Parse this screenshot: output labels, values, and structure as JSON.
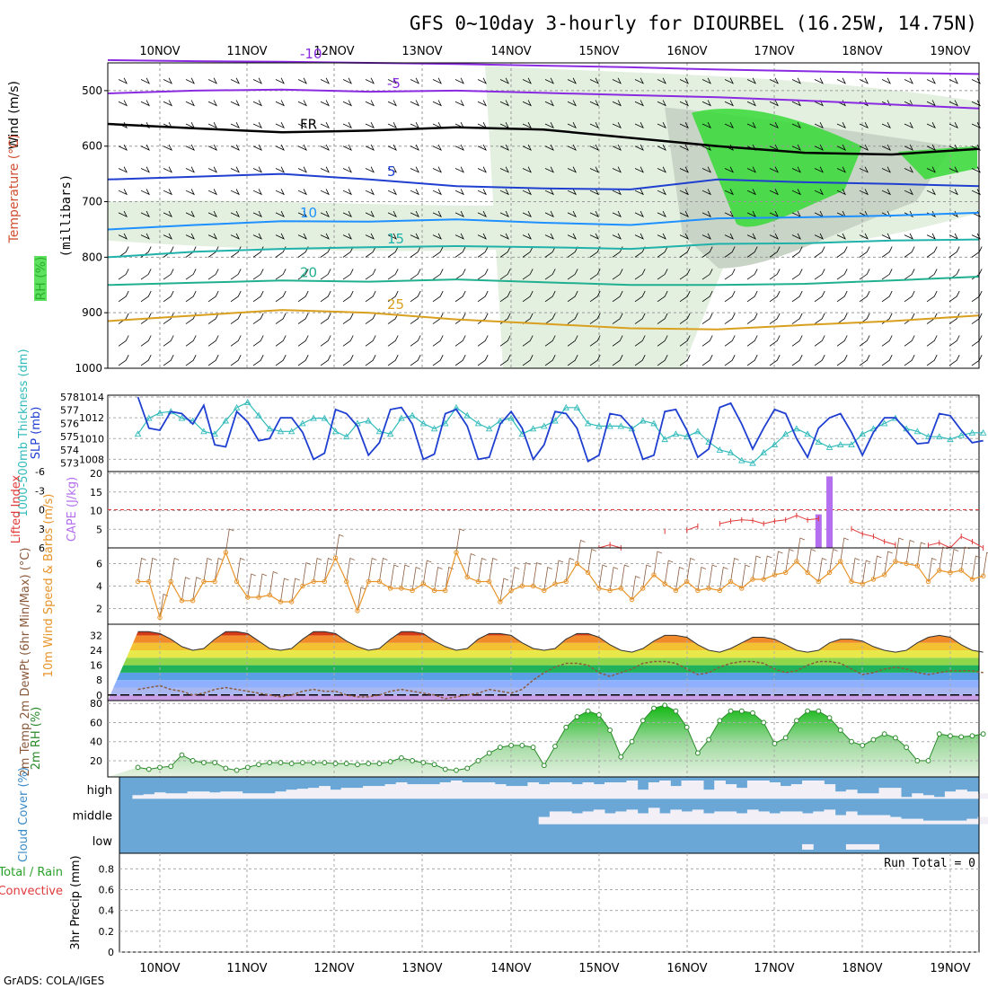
{
  "title": "GFS 0~10day 3-hourly for DIOURBEL (16.25W, 14.75N)",
  "credit": "GrADS: COLA/IGES",
  "colors": {
    "temp_contour": "#8a2be2",
    "freezing": "#000000",
    "rh_light": "#e3f0e0",
    "rh_mid": "#c8d4c6",
    "rh_green": "#36d936",
    "slp": "#1f3fd1",
    "thickness": "#33bbbb",
    "lifted_index": "#e03a3a",
    "cape": "#b36ff0",
    "wind_speed": "#e8942a",
    "barb": "#8b5a3c",
    "dewpoint": "#8b5a3c",
    "rh_line": "#2a8a2a",
    "cloud_blue": "#6ba7d6",
    "cloud_white": "#f2f0f6"
  },
  "chart_data": [
    {
      "id": "cross_section",
      "type": "heatmap",
      "title": "Wind / Temperature (°C) / RH (%) cross section",
      "ylabel": "(millibars)",
      "ylabel_parts": [
        "Wind (m/s)",
        "Temperature (°C)",
        "RH (%)"
      ],
      "y_ticks": [
        500,
        600,
        700,
        800,
        900,
        1000
      ],
      "ylim": [
        450,
        1000
      ],
      "x_categories": [
        "10NOV",
        "11NOV",
        "12NOV",
        "13NOV",
        "14NOV",
        "15NOV",
        "16NOV",
        "17NOV",
        "18NOV",
        "19NOV"
      ],
      "contour_labels": [
        "-10",
        "-5",
        "FR",
        "5",
        "10",
        "15",
        "20",
        "25"
      ],
      "isotherms": [
        {
          "label": "-10",
          "color": "#8a2be2",
          "p": [
            445,
            447,
            448,
            450,
            452,
            455,
            458,
            462,
            465,
            468,
            470
          ]
        },
        {
          "label": "-5",
          "color": "#8a2be2",
          "p": [
            505,
            500,
            498,
            502,
            500,
            504,
            508,
            512,
            518,
            525,
            532
          ]
        },
        {
          "label": "FR",
          "color": "#000000",
          "p": [
            560,
            568,
            575,
            572,
            566,
            570,
            585,
            600,
            612,
            615,
            605
          ]
        },
        {
          "label": "5",
          "color": "#1f3fd1",
          "p": [
            660,
            655,
            650,
            660,
            672,
            676,
            678,
            660,
            665,
            668,
            672
          ]
        },
        {
          "label": "10",
          "color": "#1e90ff",
          "p": [
            750,
            742,
            735,
            736,
            732,
            738,
            742,
            730,
            728,
            725,
            720
          ]
        },
        {
          "label": "15",
          "color": "#20b2aa",
          "p": [
            800,
            790,
            785,
            782,
            780,
            782,
            785,
            776,
            775,
            770,
            768
          ]
        },
        {
          "label": "20",
          "color": "#20b090",
          "p": [
            850,
            846,
            842,
            844,
            840,
            845,
            850,
            850,
            848,
            842,
            835
          ]
        },
        {
          "label": "25",
          "color": "#d9a020",
          "p": [
            915,
            905,
            895,
            900,
            912,
            920,
            928,
            930,
            922,
            915,
            905
          ]
        }
      ]
    },
    {
      "id": "slp_thickness",
      "type": "line",
      "title": "SLP (mb) & 1000-500mb Thickness (dm)",
      "ylabel_left": "1000-500mb Thickness (dm)",
      "ylabel_right": "SLP (mb)",
      "left_ticks": [
        573,
        574,
        575,
        576,
        577,
        578
      ],
      "right_ticks": [
        1008,
        1010,
        1012,
        1014
      ],
      "slp_range": [
        1007,
        1014
      ],
      "thickness_range": [
        572.5,
        578
      ],
      "series": [
        {
          "name": "SLP",
          "axis": "right",
          "values": [
            1014,
            1011,
            1010.8,
            1012.6,
            1012.4,
            1011.4,
            1013.2,
            1009.4,
            1009.2,
            1012.6,
            1011.6,
            1009.8,
            1010,
            1012,
            1012,
            1010.6,
            1008,
            1008.6,
            1012.8,
            1012.4,
            1011.2,
            1008.4,
            1009.6,
            1012.8,
            1013,
            1011.4,
            1008,
            1008.5,
            1012.4,
            1012.8,
            1011.2,
            1008,
            1008.2,
            1011.4,
            1012.6,
            1011,
            1008,
            1009.4,
            1012.6,
            1012.4,
            1011,
            1007.8,
            1008.4,
            1012.4,
            1012.2,
            1011,
            1008,
            1008.4,
            1012.6,
            1012.8,
            1010.8,
            1008.2,
            1009,
            1013,
            1013.4,
            1011.4,
            1009,
            1011,
            1012.8,
            1012.4,
            1010,
            1008.2,
            1011,
            1012,
            1012.4,
            1010.6,
            1008.4,
            1010.6,
            1012,
            1012,
            1010.8,
            1009.5,
            1009.6,
            1012.4,
            1012.2,
            1010.8,
            1009.6,
            1009.8
          ]
        },
        {
          "name": "Thickness",
          "axis": "left",
          "values": [
            575.2,
            576.4,
            576.8,
            576.9,
            576.4,
            576.2,
            575.4,
            575.2,
            576.2,
            577.2,
            577.6,
            576.6,
            575.6,
            575.4,
            575.4,
            576,
            576.4,
            576.4,
            575.4,
            575,
            576,
            576.2,
            575.4,
            575.2,
            576.4,
            576.6,
            576,
            575.6,
            576,
            577.2,
            576.6,
            576,
            575.6,
            576.2,
            576.4,
            575.2,
            575.6,
            575.8,
            576.2,
            577.2,
            577.2,
            576,
            575.8,
            575.8,
            575.8,
            575.6,
            576.2,
            576,
            574.8,
            575.2,
            575,
            575.4,
            574.6,
            574,
            573.8,
            573.2,
            573,
            573.8,
            574.4,
            575.2,
            575.6,
            575.2,
            574.6,
            574.2,
            574.4,
            574.4,
            575.2,
            575.6,
            576,
            576.4,
            575.6,
            575.4,
            575,
            575,
            574.8,
            575.1,
            575.3,
            575.3
          ]
        }
      ]
    },
    {
      "id": "cape_li",
      "type": "bar",
      "title": "CAPE (J/kg) & Lifted Index",
      "ylabel_left": "Lifted Index",
      "ylabel_right": "CAPE (J/kg)",
      "li_ticks": [
        "-6",
        "-3",
        "0",
        "3",
        "6"
      ],
      "cape_ticks": [
        5,
        10,
        15,
        20
      ],
      "cape_range": [
        0,
        20.5
      ],
      "li_range": [
        6,
        -6
      ],
      "cape_bars": [
        {
          "t": 62,
          "v": 9
        },
        {
          "t": 63,
          "v": 19.2
        }
      ],
      "li_values": [
        null,
        null,
        null,
        null,
        null,
        null,
        null,
        null,
        null,
        null,
        null,
        null,
        null,
        null,
        null,
        null,
        null,
        null,
        null,
        null,
        null,
        null,
        null,
        null,
        null,
        null,
        null,
        null,
        null,
        null,
        null,
        null,
        null,
        null,
        null,
        null,
        null,
        null,
        null,
        null,
        null,
        null,
        6,
        5.5,
        6,
        null,
        null,
        null,
        3.4,
        null,
        3.2,
        2.6,
        null,
        2.2,
        1.8,
        1.6,
        1.7,
        2.2,
        1.8,
        1.6,
        0.9,
        1.6,
        1.4,
        null,
        null,
        3,
        3.8,
        4.2,
        5,
        5.5,
        null,
        null,
        5.6,
        5.2,
        6,
        4.2,
        5,
        6
      ]
    },
    {
      "id": "wind10m",
      "type": "line",
      "title": "10m Wind Speed (m/s) & Barbs",
      "ylabel": "10m Wind Speed & Barbs (m/s)",
      "y_ticks": [
        2,
        4,
        6
      ],
      "ylim": [
        0.6,
        7.4
      ],
      "values": [
        4.4,
        4.4,
        1.2,
        4.4,
        2.7,
        2.7,
        4.4,
        4.4,
        7,
        4.4,
        3,
        3,
        3.2,
        2.6,
        2.6,
        4,
        4.4,
        4.4,
        6.5,
        4.4,
        1.8,
        4.4,
        4.4,
        3.8,
        3.8,
        3.6,
        4.2,
        3.6,
        3.6,
        7,
        4.8,
        4.4,
        4.4,
        2.6,
        3.6,
        4,
        4,
        3.6,
        4.2,
        4.4,
        6,
        5.2,
        3.8,
        3.6,
        3.8,
        2.8,
        3.8,
        5,
        4.2,
        3.6,
        4.4,
        3.6,
        3.8,
        3.6,
        4.4,
        3.8,
        4.6,
        4.6,
        5,
        5.2,
        6.2,
        5.2,
        4.4,
        5.2,
        6.2,
        4.4,
        4.2,
        4.6,
        5,
        6.2,
        6,
        5.8,
        4.4,
        5.4,
        5.2,
        5.4,
        4.6,
        4.9
      ]
    },
    {
      "id": "temp2m",
      "type": "area",
      "title": "2m Temp & 2m DewPt (°C)",
      "ylabel": "2m Temp 2m DewPt (6hr Min/Max) (°C)",
      "y_ticks": [
        0,
        8,
        16,
        24,
        32
      ],
      "ylim": [
        -3,
        38
      ],
      "temp": [
        34,
        34,
        33,
        30,
        26,
        24,
        25,
        30,
        34,
        34,
        33,
        29,
        25,
        24,
        25,
        30,
        34,
        34,
        33,
        29,
        26,
        24,
        25,
        30,
        34,
        34,
        33,
        29,
        26,
        24,
        25,
        30,
        33,
        33,
        32,
        28,
        25,
        24,
        25,
        30,
        33,
        33,
        31,
        27,
        24,
        23,
        25,
        29,
        32,
        32,
        31,
        27,
        24,
        23,
        25,
        28,
        31,
        31,
        30,
        27,
        24,
        23,
        24,
        28,
        30,
        30,
        29,
        26,
        24,
        23,
        24,
        28,
        31,
        32,
        31,
        27,
        24,
        23
      ],
      "dewpoint": [
        3,
        4,
        5,
        3,
        2,
        0,
        1,
        3,
        4,
        3,
        2,
        1,
        0,
        -1,
        0,
        2,
        3,
        2,
        2,
        0,
        -1,
        -1,
        0,
        2,
        3,
        2,
        1,
        0,
        -2,
        -1,
        0,
        1,
        3,
        2,
        1,
        3,
        8,
        12,
        15,
        17,
        17,
        16,
        12,
        10,
        12,
        14,
        17,
        18,
        18,
        17,
        14,
        11,
        12,
        15,
        17,
        18,
        18,
        17,
        14,
        12,
        13,
        16,
        18,
        18,
        17,
        14,
        11,
        12,
        14,
        15,
        14,
        12,
        11,
        12,
        13,
        13,
        13,
        12
      ]
    },
    {
      "id": "rh2m",
      "type": "area",
      "title": "2m RH (%)",
      "ylabel": "2m RH (%)",
      "y_ticks": [
        20,
        40,
        60,
        80
      ],
      "ylim": [
        3,
        83
      ],
      "values": [
        13,
        11,
        13,
        14,
        26,
        20,
        18,
        18,
        12,
        10,
        13,
        16,
        18,
        18,
        17,
        18,
        18,
        18,
        17,
        17,
        16,
        17,
        17,
        19,
        23,
        20,
        18,
        16,
        11,
        10,
        12,
        20,
        28,
        34,
        36,
        36,
        34,
        15,
        35,
        55,
        66,
        72,
        68,
        52,
        24,
        40,
        62,
        75,
        78,
        72,
        55,
        28,
        42,
        62,
        72,
        72,
        70,
        60,
        38,
        44,
        62,
        72,
        72,
        65,
        52,
        40,
        36,
        42,
        48,
        44,
        34,
        20,
        20,
        48,
        46,
        45,
        46,
        48
      ]
    },
    {
      "id": "cloud_cover",
      "type": "heatmap",
      "title": "Cloud Cover (%)",
      "ylabel": "Cloud Cover (%)",
      "rows": [
        "high",
        "middle",
        "low"
      ],
      "high": [
        0.2,
        0.25,
        0.35,
        0.3,
        0.3,
        0.4,
        0.4,
        0.35,
        0.4,
        0.4,
        0.3,
        0.3,
        0.3,
        0.4,
        0.5,
        0.55,
        0.6,
        0.7,
        0.5,
        0.6,
        0.6,
        0.7,
        0.7,
        0.8,
        0.9,
        0.8,
        0.8,
        0.8,
        0.9,
        1,
        0.9,
        0.9,
        0.9,
        0.8,
        0.7,
        0.7,
        0.9,
        0.8,
        0.9,
        0.9,
        0.8,
        0.9,
        0.8,
        0.9,
        0.9,
        1,
        0.5,
        0.9,
        1,
        0.7,
        1,
        1,
        0.5,
        1,
        0.8,
        0.6,
        1,
        1,
        0.9,
        0.7,
        0.8,
        1,
        1,
        0.8,
        0.4,
        0.5,
        0.3,
        0.3,
        0.6,
        0.6,
        0.1,
        0.3,
        0.2,
        0.1,
        0.4,
        0.5,
        0.4,
        0.3
      ],
      "middle": [
        0,
        0,
        0,
        0,
        0,
        0,
        0,
        0,
        0,
        0,
        0,
        0,
        0,
        0,
        0,
        0,
        0,
        0,
        0,
        0,
        0,
        0,
        0,
        0,
        0,
        0,
        0,
        0,
        0,
        0,
        0,
        0,
        0,
        0,
        0,
        0,
        0,
        0.4,
        0.7,
        0.7,
        0.6,
        0.7,
        0.8,
        0.6,
        0.7,
        0.8,
        0.6,
        0.9,
        0.6,
        0.8,
        0.7,
        0.8,
        0.6,
        0.7,
        0.7,
        0.6,
        0.8,
        0.7,
        0.6,
        0.7,
        0.7,
        0.6,
        0.7,
        0.8,
        0.5,
        0.7,
        0.5,
        0.5,
        0.5,
        0.4,
        0.3,
        0.3,
        0.2,
        0.2,
        0.2,
        0.2,
        0.3,
        0.4
      ],
      "low": [
        0,
        0,
        0,
        0,
        0,
        0,
        0,
        0,
        0,
        0,
        0,
        0,
        0,
        0,
        0,
        0,
        0,
        0,
        0,
        0,
        0,
        0,
        0,
        0,
        0,
        0,
        0,
        0,
        0,
        0,
        0,
        0,
        0,
        0,
        0,
        0,
        0,
        0,
        0,
        0,
        0,
        0,
        0,
        0,
        0,
        0,
        0,
        0,
        0,
        0,
        0,
        0,
        0,
        0,
        0,
        0,
        0,
        0,
        0,
        0,
        0,
        0.3,
        0,
        0,
        0,
        0.3,
        0.3,
        0.3,
        0,
        0,
        0,
        0,
        0,
        0,
        0,
        0,
        0,
        0
      ]
    },
    {
      "id": "precip",
      "type": "bar",
      "title": "3hr Precip (mm)",
      "ylabel": "3hr Precip (mm)",
      "legend": [
        "Total / Rain",
        "Convective"
      ],
      "y_ticks": [
        "0",
        "0.2",
        "0.4",
        "0.6",
        "0.8"
      ],
      "ylim": [
        0,
        0.95
      ],
      "run_total_label": "Run Total = 0",
      "values": []
    }
  ]
}
